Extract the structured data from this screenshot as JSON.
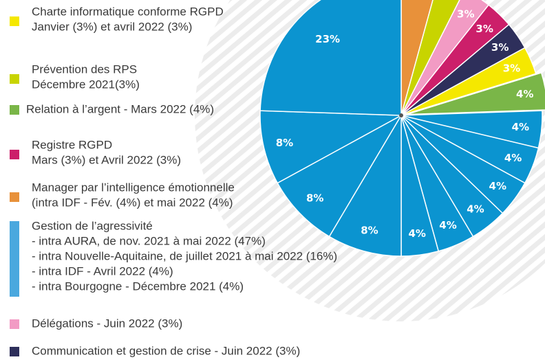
{
  "chart_data": {
    "type": "pie",
    "legend": [
      {
        "color": "#f5e800",
        "lines": [
          "Charte informatique conforme RGPD",
          "Janvier (3%) et avril 2022 (3%)"
        ]
      },
      {
        "color": "#c8d400",
        "lines": [
          "Prévention des RPS",
          "Décembre 2021(3%)"
        ]
      },
      {
        "color": "#7ab648",
        "lines": [
          "Relation à l’argent - Mars 2022 (4%)"
        ]
      },
      {
        "color": "#cc1f6a",
        "lines": [
          "Registre RGPD",
          "Mars (3%) et Avril 2022 (3%)"
        ]
      },
      {
        "color": "#e8913a",
        "lines": [
          "Manager par l’intelligence émotionnelle",
          "(intra IDF - Fév. (4%) et mai 2022 (4%)"
        ]
      },
      {
        "color": "#4aa8de",
        "lines": [
          "Gestion de l’agressivité",
          "- intra AURA, de nov. 2021 à mai 2022 (47%)",
          "- intra Nouvelle-Aquitaine, de juillet 2021 à mai 2022 (16%)",
          "- intra IDF - Avril 2022 (4%)",
          "- intra Bourgogne - Décembre 2021 (4%)"
        ]
      },
      {
        "color": "#f29bc4",
        "lines": [
          "Délégations - Juin 2022 (3%)"
        ]
      },
      {
        "color": "#2e2f5b",
        "lines": [
          "Communication et gestion de crise - Juin 2022 (3%)"
        ]
      }
    ],
    "values": [
      4,
      3,
      3,
      3,
      3,
      3,
      4,
      4,
      4,
      4,
      4,
      4,
      4,
      8,
      8,
      8,
      23
    ],
    "value_labels": [
      null,
      null,
      "3%",
      "3%",
      "3%",
      "3%",
      "4%",
      "4%",
      "4%",
      "4%",
      "4%",
      "4%",
      "4%",
      "8%",
      "8%",
      "8%",
      "23%"
    ],
    "colors": [
      "#e8913a",
      "#c8d400",
      "#f29bc4",
      "#cc1f6a",
      "#2e2f5b",
      "#f5e800",
      "#7ab648",
      "#0b94d0",
      "#0b94d0",
      "#0b94d0",
      "#0b94d0",
      "#0b94d0",
      "#0b94d0",
      "#0b94d0",
      "#0b94d0",
      "#0b94d0",
      "#0b94d0"
    ]
  }
}
